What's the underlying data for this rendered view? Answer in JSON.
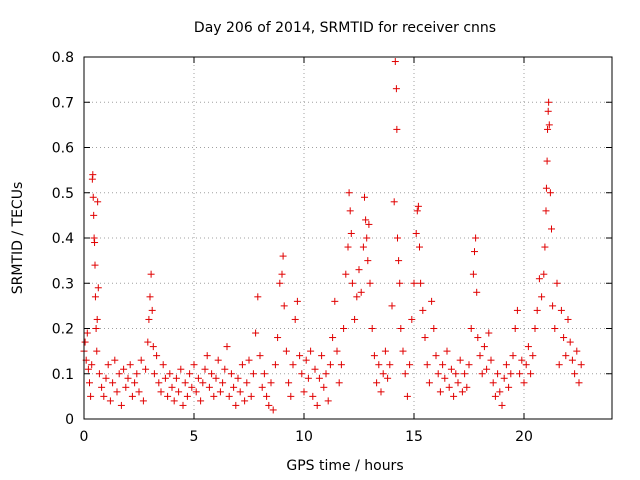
{
  "chart_data": {
    "type": "scatter",
    "title": "Day 206 of 2014, SRMTID for receiver cnns",
    "xlabel": "GPS time / hours",
    "ylabel": "SRMTID / TECUs",
    "xlim": [
      0,
      24
    ],
    "ylim": [
      0,
      0.8
    ],
    "xticks": [
      0,
      5,
      10,
      15,
      20
    ],
    "xtick_labels": [
      "0",
      "5",
      "10",
      "15",
      "20"
    ],
    "yticks": [
      0,
      0.1,
      0.2,
      0.3,
      0.4,
      0.5,
      0.6,
      0.7,
      0.8
    ],
    "ytick_labels": [
      "0",
      "0.1",
      "0.2",
      "0.3",
      "0.4",
      "0.5",
      "0.6",
      "0.7",
      "0.8"
    ],
    "grid": true,
    "marker": "plus",
    "marker_color": "#e00000",
    "series": [
      {
        "name": "SRMTID",
        "points": [
          [
            0.0,
            0.15
          ],
          [
            0.05,
            0.17
          ],
          [
            0.1,
            0.13
          ],
          [
            0.15,
            0.19
          ],
          [
            0.2,
            0.11
          ],
          [
            0.25,
            0.08
          ],
          [
            0.3,
            0.05
          ],
          [
            0.35,
            0.12
          ],
          [
            0.38,
            0.53
          ],
          [
            0.4,
            0.54
          ],
          [
            0.42,
            0.49
          ],
          [
            0.44,
            0.45
          ],
          [
            0.46,
            0.4
          ],
          [
            0.48,
            0.39
          ],
          [
            0.5,
            0.34
          ],
          [
            0.52,
            0.27
          ],
          [
            0.55,
            0.2
          ],
          [
            0.58,
            0.15
          ],
          [
            0.6,
            0.22
          ],
          [
            0.62,
            0.48
          ],
          [
            0.65,
            0.29
          ],
          [
            0.7,
            0.1
          ],
          [
            0.8,
            0.07
          ],
          [
            0.9,
            0.05
          ],
          [
            1.0,
            0.09
          ],
          [
            1.1,
            0.12
          ],
          [
            1.2,
            0.04
          ],
          [
            1.3,
            0.08
          ],
          [
            1.4,
            0.13
          ],
          [
            1.5,
            0.06
          ],
          [
            1.6,
            0.1
          ],
          [
            1.7,
            0.03
          ],
          [
            1.8,
            0.11
          ],
          [
            1.9,
            0.07
          ],
          [
            2.0,
            0.09
          ],
          [
            2.1,
            0.12
          ],
          [
            2.2,
            0.05
          ],
          [
            2.3,
            0.08
          ],
          [
            2.4,
            0.1
          ],
          [
            2.5,
            0.06
          ],
          [
            2.6,
            0.13
          ],
          [
            2.7,
            0.04
          ],
          [
            2.8,
            0.11
          ],
          [
            2.9,
            0.17
          ],
          [
            2.95,
            0.22
          ],
          [
            3.0,
            0.27
          ],
          [
            3.05,
            0.32
          ],
          [
            3.1,
            0.24
          ],
          [
            3.15,
            0.16
          ],
          [
            3.2,
            0.1
          ],
          [
            3.3,
            0.14
          ],
          [
            3.4,
            0.08
          ],
          [
            3.5,
            0.06
          ],
          [
            3.6,
            0.12
          ],
          [
            3.7,
            0.09
          ],
          [
            3.8,
            0.05
          ],
          [
            3.9,
            0.1
          ],
          [
            4.0,
            0.07
          ],
          [
            4.1,
            0.04
          ],
          [
            4.2,
            0.09
          ],
          [
            4.3,
            0.06
          ],
          [
            4.4,
            0.11
          ],
          [
            4.5,
            0.03
          ],
          [
            4.6,
            0.08
          ],
          [
            4.7,
            0.05
          ],
          [
            4.8,
            0.1
          ],
          [
            4.9,
            0.07
          ],
          [
            5.0,
            0.12
          ],
          [
            5.1,
            0.06
          ],
          [
            5.2,
            0.09
          ],
          [
            5.3,
            0.04
          ],
          [
            5.4,
            0.08
          ],
          [
            5.5,
            0.11
          ],
          [
            5.6,
            0.14
          ],
          [
            5.7,
            0.07
          ],
          [
            5.8,
            0.1
          ],
          [
            5.9,
            0.05
          ],
          [
            6.0,
            0.09
          ],
          [
            6.1,
            0.13
          ],
          [
            6.2,
            0.06
          ],
          [
            6.3,
            0.08
          ],
          [
            6.4,
            0.11
          ],
          [
            6.5,
            0.16
          ],
          [
            6.6,
            0.05
          ],
          [
            6.7,
            0.1
          ],
          [
            6.8,
            0.07
          ],
          [
            6.9,
            0.03
          ],
          [
            7.0,
            0.09
          ],
          [
            7.1,
            0.06
          ],
          [
            7.2,
            0.12
          ],
          [
            7.3,
            0.04
          ],
          [
            7.4,
            0.08
          ],
          [
            7.5,
            0.13
          ],
          [
            7.6,
            0.05
          ],
          [
            7.7,
            0.1
          ],
          [
            7.8,
            0.19
          ],
          [
            7.9,
            0.27
          ],
          [
            8.0,
            0.14
          ],
          [
            8.1,
            0.07
          ],
          [
            8.2,
            0.1
          ],
          [
            8.3,
            0.05
          ],
          [
            8.4,
            0.03
          ],
          [
            8.5,
            0.08
          ],
          [
            8.6,
            0.02
          ],
          [
            8.7,
            0.12
          ],
          [
            8.8,
            0.18
          ],
          [
            8.9,
            0.3
          ],
          [
            9.0,
            0.32
          ],
          [
            9.05,
            0.36
          ],
          [
            9.1,
            0.25
          ],
          [
            9.2,
            0.15
          ],
          [
            9.3,
            0.08
          ],
          [
            9.4,
            0.05
          ],
          [
            9.5,
            0.12
          ],
          [
            9.6,
            0.22
          ],
          [
            9.7,
            0.26
          ],
          [
            9.8,
            0.14
          ],
          [
            9.9,
            0.1
          ],
          [
            10.0,
            0.06
          ],
          [
            10.1,
            0.13
          ],
          [
            10.2,
            0.09
          ],
          [
            10.3,
            0.15
          ],
          [
            10.4,
            0.05
          ],
          [
            10.5,
            0.11
          ],
          [
            10.6,
            0.03
          ],
          [
            10.7,
            0.09
          ],
          [
            10.8,
            0.14
          ],
          [
            10.9,
            0.07
          ],
          [
            11.0,
            0.1
          ],
          [
            11.1,
            0.04
          ],
          [
            11.2,
            0.12
          ],
          [
            11.3,
            0.18
          ],
          [
            11.4,
            0.26
          ],
          [
            11.5,
            0.15
          ],
          [
            11.6,
            0.08
          ],
          [
            11.7,
            0.12
          ],
          [
            11.8,
            0.2
          ],
          [
            11.9,
            0.32
          ],
          [
            12.0,
            0.38
          ],
          [
            12.05,
            0.5
          ],
          [
            12.1,
            0.46
          ],
          [
            12.15,
            0.41
          ],
          [
            12.2,
            0.3
          ],
          [
            12.3,
            0.22
          ],
          [
            12.4,
            0.27
          ],
          [
            12.5,
            0.33
          ],
          [
            12.6,
            0.28
          ],
          [
            12.7,
            0.38
          ],
          [
            12.75,
            0.49
          ],
          [
            12.8,
            0.44
          ],
          [
            12.85,
            0.4
          ],
          [
            12.9,
            0.35
          ],
          [
            12.95,
            0.43
          ],
          [
            13.0,
            0.3
          ],
          [
            13.1,
            0.2
          ],
          [
            13.2,
            0.14
          ],
          [
            13.3,
            0.08
          ],
          [
            13.4,
            0.12
          ],
          [
            13.5,
            0.06
          ],
          [
            13.6,
            0.1
          ],
          [
            13.7,
            0.15
          ],
          [
            13.8,
            0.09
          ],
          [
            13.9,
            0.12
          ],
          [
            14.0,
            0.25
          ],
          [
            14.1,
            0.48
          ],
          [
            14.15,
            0.79
          ],
          [
            14.2,
            0.73
          ],
          [
            14.22,
            0.64
          ],
          [
            14.25,
            0.4
          ],
          [
            14.3,
            0.35
          ],
          [
            14.35,
            0.3
          ],
          [
            14.4,
            0.2
          ],
          [
            14.5,
            0.15
          ],
          [
            14.6,
            0.1
          ],
          [
            14.7,
            0.05
          ],
          [
            14.8,
            0.12
          ],
          [
            14.9,
            0.22
          ],
          [
            15.0,
            0.3
          ],
          [
            15.1,
            0.41
          ],
          [
            15.15,
            0.46
          ],
          [
            15.2,
            0.47
          ],
          [
            15.25,
            0.38
          ],
          [
            15.3,
            0.3
          ],
          [
            15.4,
            0.24
          ],
          [
            15.5,
            0.18
          ],
          [
            15.6,
            0.12
          ],
          [
            15.7,
            0.08
          ],
          [
            15.8,
            0.26
          ],
          [
            15.9,
            0.2
          ],
          [
            16.0,
            0.14
          ],
          [
            16.1,
            0.1
          ],
          [
            16.2,
            0.06
          ],
          [
            16.3,
            0.12
          ],
          [
            16.4,
            0.09
          ],
          [
            16.5,
            0.15
          ],
          [
            16.6,
            0.07
          ],
          [
            16.7,
            0.11
          ],
          [
            16.8,
            0.05
          ],
          [
            16.9,
            0.1
          ],
          [
            17.0,
            0.08
          ],
          [
            17.1,
            0.13
          ],
          [
            17.2,
            0.06
          ],
          [
            17.3,
            0.1
          ],
          [
            17.4,
            0.07
          ],
          [
            17.5,
            0.12
          ],
          [
            17.6,
            0.2
          ],
          [
            17.7,
            0.32
          ],
          [
            17.75,
            0.37
          ],
          [
            17.8,
            0.4
          ],
          [
            17.85,
            0.28
          ],
          [
            17.9,
            0.18
          ],
          [
            18.0,
            0.14
          ],
          [
            18.1,
            0.1
          ],
          [
            18.2,
            0.16
          ],
          [
            18.3,
            0.11
          ],
          [
            18.4,
            0.19
          ],
          [
            18.5,
            0.13
          ],
          [
            18.6,
            0.08
          ],
          [
            18.7,
            0.05
          ],
          [
            18.8,
            0.1
          ],
          [
            18.9,
            0.06
          ],
          [
            19.0,
            0.03
          ],
          [
            19.1,
            0.09
          ],
          [
            19.2,
            0.12
          ],
          [
            19.3,
            0.07
          ],
          [
            19.4,
            0.1
          ],
          [
            19.5,
            0.14
          ],
          [
            19.6,
            0.2
          ],
          [
            19.7,
            0.24
          ],
          [
            19.8,
            0.1
          ],
          [
            19.9,
            0.13
          ],
          [
            20.0,
            0.08
          ],
          [
            20.1,
            0.12
          ],
          [
            20.2,
            0.16
          ],
          [
            20.3,
            0.1
          ],
          [
            20.4,
            0.14
          ],
          [
            20.5,
            0.2
          ],
          [
            20.6,
            0.24
          ],
          [
            20.7,
            0.31
          ],
          [
            20.8,
            0.27
          ],
          [
            20.9,
            0.32
          ],
          [
            20.95,
            0.38
          ],
          [
            21.0,
            0.46
          ],
          [
            21.02,
            0.51
          ],
          [
            21.05,
            0.57
          ],
          [
            21.07,
            0.64
          ],
          [
            21.1,
            0.68
          ],
          [
            21.12,
            0.7
          ],
          [
            21.15,
            0.65
          ],
          [
            21.2,
            0.5
          ],
          [
            21.25,
            0.42
          ],
          [
            21.3,
            0.25
          ],
          [
            21.4,
            0.2
          ],
          [
            21.5,
            0.3
          ],
          [
            21.6,
            0.12
          ],
          [
            21.7,
            0.24
          ],
          [
            21.8,
            0.18
          ],
          [
            21.9,
            0.14
          ],
          [
            22.0,
            0.22
          ],
          [
            22.1,
            0.17
          ],
          [
            22.2,
            0.13
          ],
          [
            22.3,
            0.1
          ],
          [
            22.4,
            0.15
          ],
          [
            22.5,
            0.08
          ],
          [
            22.6,
            0.12
          ]
        ]
      }
    ]
  }
}
